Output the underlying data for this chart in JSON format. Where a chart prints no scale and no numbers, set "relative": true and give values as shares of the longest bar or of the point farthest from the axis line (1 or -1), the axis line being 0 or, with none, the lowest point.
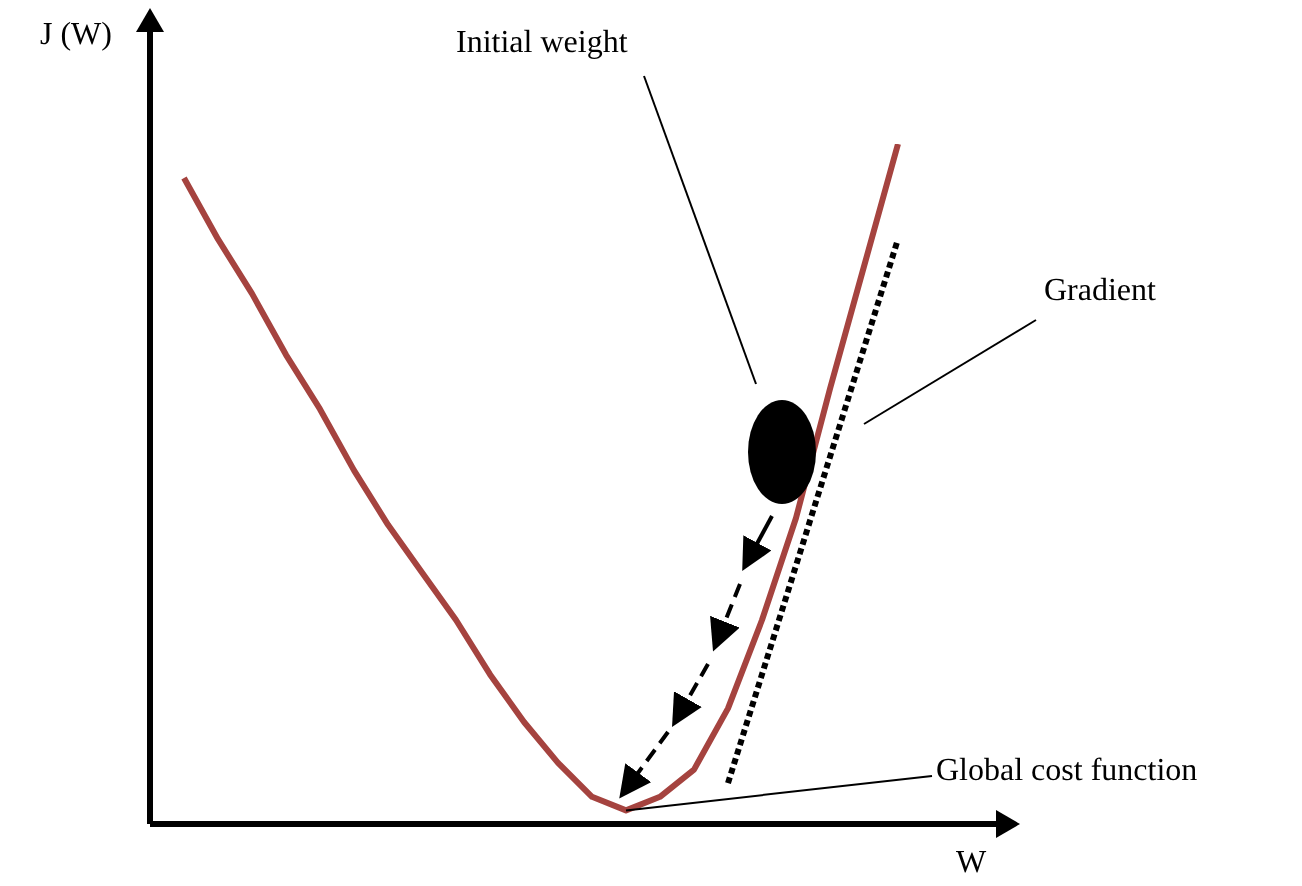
{
  "chart_data": {
    "type": "line",
    "relative": true,
    "xlabel": "W",
    "ylabel": "J (W)",
    "marker": "none",
    "categories": [
      null,
      null,
      null,
      null,
      null,
      null,
      null,
      null,
      null,
      null,
      null,
      null,
      null,
      null,
      null,
      null,
      null,
      null,
      null,
      null,
      null,
      null
    ],
    "series": [
      {
        "color": "#a5433f",
        "values": [
          0.95,
          0.86,
          0.78,
          0.69,
          0.61,
          0.52,
          0.44,
          0.37,
          0.3,
          0.22,
          0.15,
          0.09,
          0.04,
          0.02,
          0.04,
          0.08,
          0.17,
          0.3,
          0.45,
          0.64,
          0.82,
          1
        ]
      },
      {
        "type": "line",
        "color": "#000000",
        "line_style": "dotted",
        "values": [
          null,
          null,
          null,
          null,
          null,
          null,
          null,
          null,
          null,
          null,
          null,
          null,
          null,
          null,
          null,
          null,
          0.06,
          0.22,
          0.38,
          0.54,
          0.7,
          0.86
        ]
      }
    ],
    "annotations": [
      "Initial weight",
      "Gradient",
      "Global cost function"
    ]
  }
}
